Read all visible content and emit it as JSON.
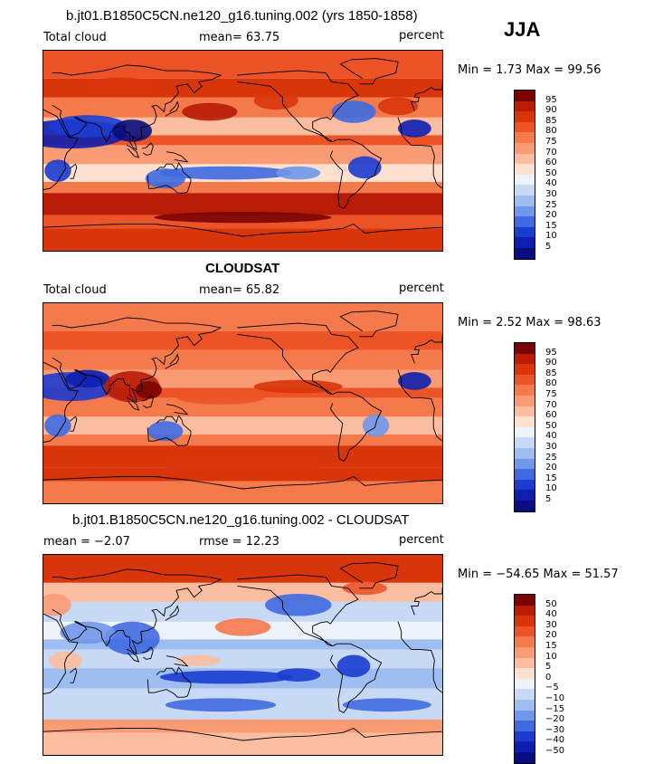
{
  "season": "JJA",
  "panels": [
    {
      "title": "b.jt01.B1850C5CN.ne120_g16.tuning.002 (yrs 1850-1858)",
      "left_label": "Total cloud",
      "mid_label": "mean=   63.75",
      "right_label": "percent",
      "minmax": "Min =    1.73 Max =   99.56",
      "variant": "model"
    },
    {
      "title": "CLOUDSAT",
      "left_label": "Total cloud",
      "mid_label": "mean=   65.82",
      "right_label": "percent",
      "minmax": "Min =    2.52 Max =   98.63",
      "variant": "obs"
    },
    {
      "title": "b.jt01.B1850C5CN.ne120_g16.tuning.002 - CLOUDSAT",
      "left_label": "mean =   −2.07",
      "mid_label": "rmse =   12.23",
      "right_label": "percent",
      "minmax": "Min = −54.65 Max =   51.57",
      "variant": "diff"
    }
  ],
  "colorbar_abs": {
    "labels": [
      "95",
      "90",
      "85",
      "80",
      "75",
      "70",
      "60",
      "50",
      "40",
      "30",
      "25",
      "20",
      "15",
      "10",
      "5"
    ],
    "colors": [
      "#7a0403",
      "#b81b06",
      "#d9350b",
      "#ec5427",
      "#f4794b",
      "#f99b74",
      "#fbbd9f",
      "#fde0cf",
      "#eef3fb",
      "#c7d9f5",
      "#9ebdf0",
      "#6f97ea",
      "#3f6ae0",
      "#1c3cd0",
      "#0e1fb0",
      "#0a0d80"
    ]
  },
  "colorbar_diff": {
    "labels": [
      "50",
      "40",
      "30",
      "20",
      "15",
      "10",
      "5",
      "0",
      "−5",
      "−10",
      "−15",
      "−20",
      "−30",
      "−40",
      "−50"
    ],
    "colors": [
      "#7a0403",
      "#b81b06",
      "#d9350b",
      "#ec5427",
      "#f4794b",
      "#f99b74",
      "#fbbd9f",
      "#fde0cf",
      "#eef3fb",
      "#c7d9f5",
      "#9ebdf0",
      "#6f97ea",
      "#3f6ae0",
      "#1c3cd0",
      "#0e1fb0",
      "#0a0d80"
    ]
  }
}
